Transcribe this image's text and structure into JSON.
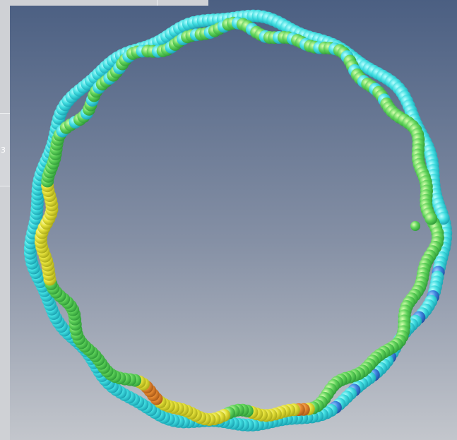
{
  "overlay": {
    "label": "3"
  }
}
